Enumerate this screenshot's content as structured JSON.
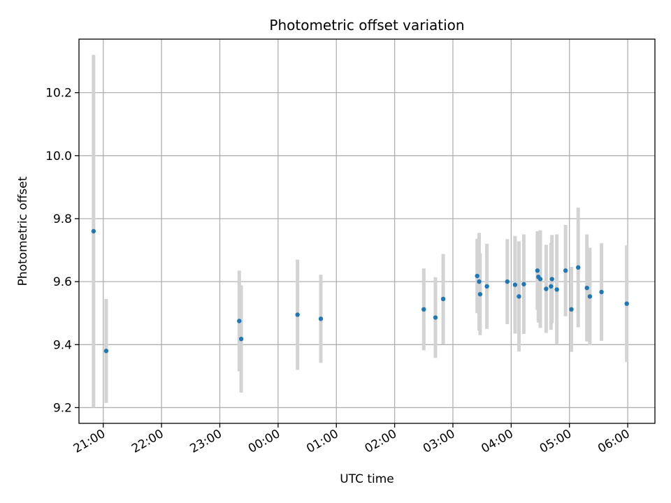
{
  "chart_data": {
    "type": "scatter",
    "title": "Photometric offset variation",
    "xlabel": "UTC time",
    "ylabel": "Photometric offset",
    "x_tick_labels": [
      "21:00",
      "22:00",
      "23:00",
      "00:00",
      "01:00",
      "02:00",
      "03:00",
      "04:00",
      "05:00",
      "06:00"
    ],
    "y_ticks": [
      9.2,
      9.4,
      9.6,
      9.8,
      10.0,
      10.2
    ],
    "y_tick_labels": [
      "9.2",
      "9.4",
      "9.6",
      "9.8",
      "10.0",
      "10.2"
    ],
    "xlim": [
      "20:35",
      "06:28"
    ],
    "ylim": [
      9.15,
      10.37
    ],
    "grid": true,
    "point_color": "#1f77b4",
    "errorbar_color": "#d3d3d3",
    "series": [
      {
        "points": [
          {
            "x": "20:50",
            "y": 9.76,
            "yerr": 0.56
          },
          {
            "x": "21:03",
            "y": 9.38,
            "yerr": 0.165
          },
          {
            "x": "23:20",
            "y": 9.475,
            "yerr": 0.16
          },
          {
            "x": "23:22",
            "y": 9.418,
            "yerr": 0.17
          },
          {
            "x": "00:20",
            "y": 9.495,
            "yerr": 0.175
          },
          {
            "x": "00:44",
            "y": 9.482,
            "yerr": 0.14
          },
          {
            "x": "02:30",
            "y": 9.512,
            "yerr": 0.13
          },
          {
            "x": "02:42",
            "y": 9.486,
            "yerr": 0.128
          },
          {
            "x": "02:50",
            "y": 9.545,
            "yerr": 0.143
          },
          {
            "x": "03:25",
            "y": 9.618,
            "yerr": 0.118
          },
          {
            "x": "03:27",
            "y": 9.6,
            "yerr": 0.155
          },
          {
            "x": "03:28",
            "y": 9.56,
            "yerr": 0.13
          },
          {
            "x": "03:35",
            "y": 9.585,
            "yerr": 0.135
          },
          {
            "x": "03:56",
            "y": 9.6,
            "yerr": 0.135
          },
          {
            "x": "04:04",
            "y": 9.59,
            "yerr": 0.155
          },
          {
            "x": "04:08",
            "y": 9.553,
            "yerr": 0.175
          },
          {
            "x": "04:13",
            "y": 9.592,
            "yerr": 0.158
          },
          {
            "x": "04:27",
            "y": 9.635,
            "yerr": 0.125
          },
          {
            "x": "04:28",
            "y": 9.615,
            "yerr": 0.145
          },
          {
            "x": "04:30",
            "y": 9.608,
            "yerr": 0.155
          },
          {
            "x": "04:36",
            "y": 9.577,
            "yerr": 0.14
          },
          {
            "x": "04:41",
            "y": 9.585,
            "yerr": 0.138
          },
          {
            "x": "04:42",
            "y": 9.608,
            "yerr": 0.14
          },
          {
            "x": "04:47",
            "y": 9.575,
            "yerr": 0.175
          },
          {
            "x": "04:56",
            "y": 9.635,
            "yerr": 0.145
          },
          {
            "x": "05:02",
            "y": 9.512,
            "yerr": 0.135
          },
          {
            "x": "05:09",
            "y": 9.645,
            "yerr": 0.19
          },
          {
            "x": "05:18",
            "y": 9.58,
            "yerr": 0.17
          },
          {
            "x": "05:21",
            "y": 9.553,
            "yerr": 0.155
          },
          {
            "x": "05:33",
            "y": 9.567,
            "yerr": 0.155
          },
          {
            "x": "05:59",
            "y": 9.53,
            "yerr": 0.185
          }
        ]
      }
    ]
  }
}
